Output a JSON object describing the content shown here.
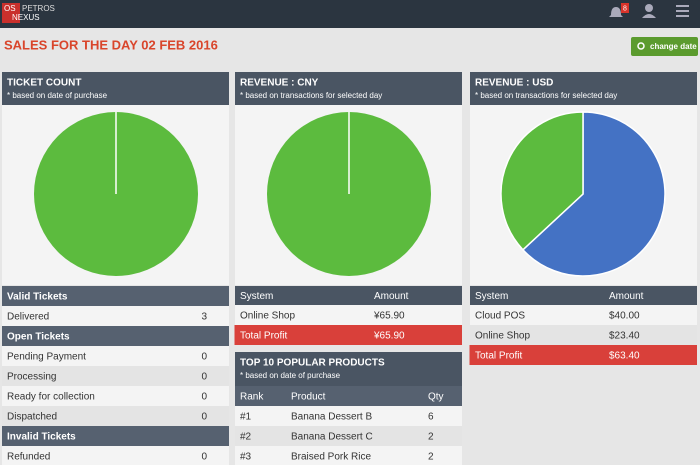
{
  "header": {
    "logo": [
      "OS",
      "PETROS",
      "NEXUS"
    ],
    "notifications": "8"
  },
  "page_title": "SALES FOR THE DAY 02 FEB 2016",
  "change_date_button": "change date",
  "ticket_count": {
    "title": "TICKET COUNT",
    "note": "* based on date of purchase",
    "color": "#5cbb3e",
    "sections": [
      {
        "heading": "Valid Tickets",
        "rows": [
          {
            "name": "Delivered",
            "value": 3
          }
        ]
      },
      {
        "heading": "Open Tickets",
        "rows": [
          {
            "name": "Pending Payment",
            "value": 0
          },
          {
            "name": "Processing",
            "value": 0
          },
          {
            "name": "Ready for collection",
            "value": 0
          },
          {
            "name": "Dispatched",
            "value": 0
          }
        ]
      },
      {
        "heading": "Invalid Tickets",
        "rows": [
          {
            "name": "Refunded",
            "value": 0
          }
        ]
      }
    ]
  },
  "revenue_cny": {
    "title": "REVENUE : CNY",
    "note": "* based on transactions for selected day",
    "columns": [
      "System",
      "Amount"
    ],
    "rows": [
      {
        "name": "Online Shop",
        "value": 65.9,
        "label": "¥65.90",
        "color": "#5cbb3e"
      }
    ],
    "total": {
      "name": "Total Profit",
      "value": 65.9,
      "label": "¥65.90"
    }
  },
  "revenue_usd": {
    "title": "REVENUE : USD",
    "note": "* based on transactions for selected day",
    "columns": [
      "System",
      "Amount"
    ],
    "rows": [
      {
        "name": "Cloud POS",
        "value": 40,
        "label": "$40.00",
        "color": "#4472c4"
      },
      {
        "name": "Online Shop",
        "value": 23.4,
        "label": "$23.40",
        "color": "#5cbb3e"
      }
    ],
    "total": {
      "name": "Total Profit",
      "value": 63.4,
      "label": "$63.40"
    }
  },
  "top_products": {
    "title": "TOP 10 POPULAR PRODUCTS",
    "note": "* based on date of purchase",
    "columns": [
      "Rank",
      "Product",
      "Qty"
    ],
    "rows": [
      [
        "#1",
        "Banana Dessert B",
        6
      ],
      [
        "#2",
        "Banana Dessert C",
        2
      ],
      [
        "#3",
        "Braised Pork Rice",
        2
      ]
    ]
  }
}
